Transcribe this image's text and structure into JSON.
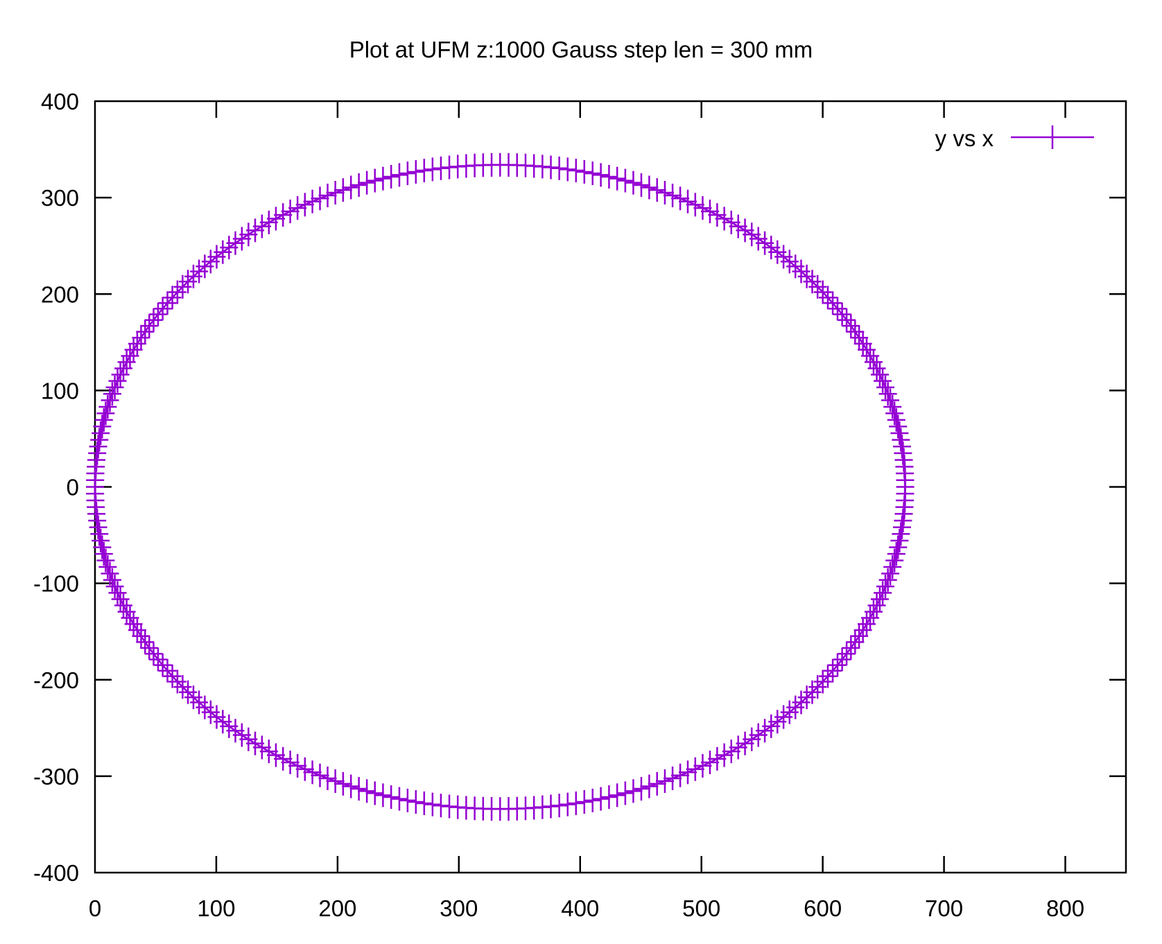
{
  "chart_data": {
    "type": "scatter",
    "title": "Plot at UFM z:1000 Gauss step len = 300 mm",
    "xlabel": "",
    "ylabel": "",
    "xlim": [
      0,
      850
    ],
    "ylim": [
      -400,
      400
    ],
    "x_ticks": [
      0,
      100,
      200,
      300,
      400,
      500,
      600,
      700,
      800
    ],
    "y_ticks": [
      -400,
      -300,
      -200,
      -100,
      0,
      100,
      200,
      300,
      400
    ],
    "x_tick_labels": [
      "0",
      "100",
      "200",
      "300",
      "400",
      "500",
      "600",
      "700",
      "800"
    ],
    "y_tick_labels": [
      "-400",
      "-300",
      "-200",
      "-100",
      "0",
      "100",
      "200",
      "300",
      "400"
    ],
    "grid": false,
    "legend_position": "top-right",
    "series": [
      {
        "name": "y vs x",
        "color": "#9400d3",
        "marker": "plus",
        "line": true,
        "shape": "closed curve",
        "center": [
          334,
          0
        ],
        "x_range": [
          0,
          668
        ],
        "y_range": [
          -334,
          334
        ],
        "point_count": 300
      }
    ]
  }
}
